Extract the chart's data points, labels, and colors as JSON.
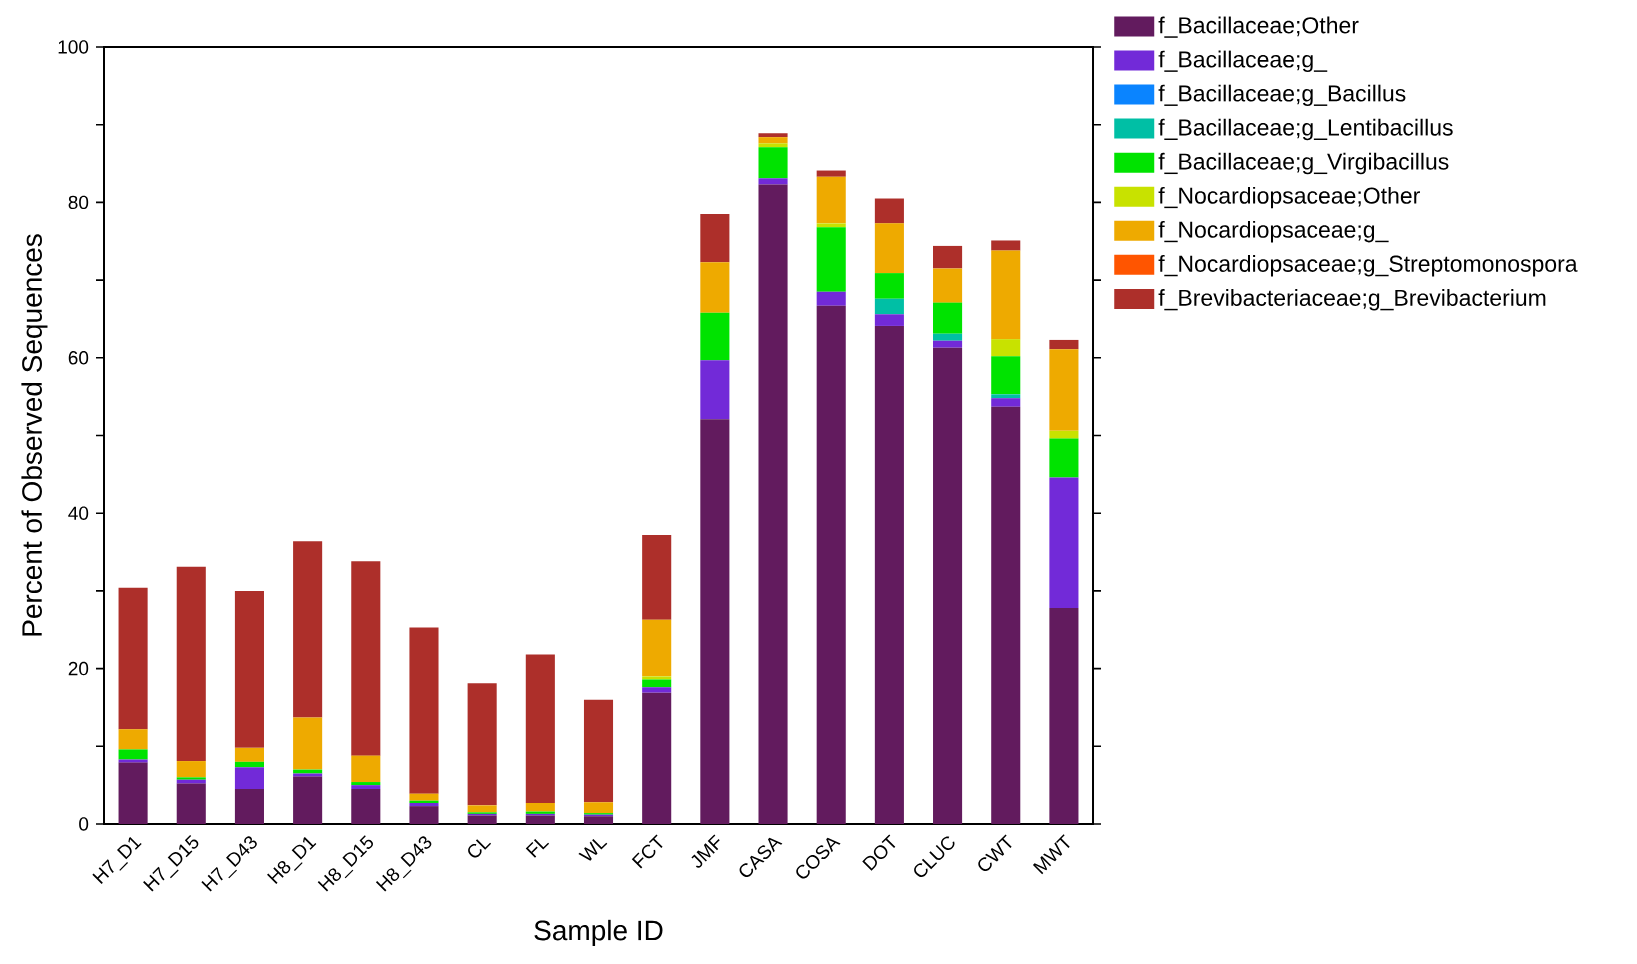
{
  "chart_data": {
    "type": "bar",
    "stacked": true,
    "xlabel": "Sample ID",
    "ylabel": "Percent  of Observed Sequences",
    "categories": [
      "H7_D1",
      "H7_D15",
      "H7_D43",
      "H8_D1",
      "H8_D15",
      "H8_D43",
      "CL",
      "FL",
      "WL",
      "FCT",
      "JMF",
      "CASA",
      "COSA",
      "DOT",
      "CLUC",
      "CWT",
      "MWT"
    ],
    "ylim": [
      0,
      100
    ],
    "yticks": [
      0,
      {
        "value": 10,
        "label": null
      },
      20,
      {
        "value": 30,
        "label": null
      },
      40,
      {
        "value": 50,
        "label": null
      },
      60,
      {
        "value": 70,
        "label": null
      },
      80,
      {
        "value": 90,
        "label": null
      },
      100
    ],
    "legend": "right",
    "grid": false,
    "series": [
      {
        "name": "f_Bacillaceae;Other",
        "color": "#621b5e",
        "values": [
          7.9,
          5.2,
          4.5,
          6.1,
          4.5,
          2.3,
          1.1,
          1.1,
          1.0,
          16.9,
          52.1,
          82.3,
          66.7,
          64.1,
          61.3,
          53.7,
          27.8
        ]
      },
      {
        "name": "f_Bacillaceae;g_",
        "color": "#722ad8",
        "values": [
          0.4,
          0.5,
          2.8,
          0.4,
          0.5,
          0.4,
          0.2,
          0.2,
          0.2,
          0.7,
          7.6,
          0.8,
          1.8,
          1.5,
          0.9,
          1.1,
          16.8
        ]
      },
      {
        "name": "f_Bacillaceae;g_Bacillus",
        "color": "#0a84ff",
        "values": [
          0,
          0,
          0,
          0,
          0,
          0,
          0,
          0,
          0,
          0,
          0,
          0,
          0,
          0,
          0,
          0,
          0
        ]
      },
      {
        "name": "f_Bacillaceae;g_Lentibacillus",
        "color": "#00bfa5",
        "values": [
          0,
          0,
          0,
          0,
          0,
          0,
          0,
          0,
          0,
          0,
          0,
          0,
          0,
          2.0,
          0.9,
          0.5,
          0
        ]
      },
      {
        "name": "f_Bacillaceae;g_Virgibacillus",
        "color": "#00e300",
        "values": [
          1.3,
          0.3,
          0.7,
          0.5,
          0.4,
          0.3,
          0.2,
          0.3,
          0.2,
          1.0,
          6.1,
          4.0,
          8.3,
          3.3,
          4.0,
          4.9,
          5.0
        ]
      },
      {
        "name": "f_Nocardiopsaceae;Other",
        "color": "#c8e200",
        "values": [
          0,
          0,
          0,
          0,
          0,
          0,
          0,
          0,
          0,
          0.4,
          0,
          0.5,
          0.5,
          0,
          0,
          2.2,
          1.0
        ]
      },
      {
        "name": "f_Nocardiopsaceae;g_",
        "color": "#eeaa00",
        "values": [
          2.6,
          2.1,
          1.8,
          6.7,
          3.4,
          0.9,
          0.9,
          1.1,
          1.4,
          7.3,
          6.5,
          0.8,
          6.0,
          6.4,
          4.4,
          11.4,
          10.5
        ]
      },
      {
        "name": "f_Nocardiopsaceae;g_Streptomonospora",
        "color": "#ff5500",
        "values": [
          0,
          0,
          0,
          0,
          0,
          0,
          0,
          0,
          0,
          0,
          0,
          0,
          0,
          0,
          0,
          0,
          0
        ]
      },
      {
        "name": "f_Brevibacteriaceae;g_Brevibacterium",
        "color": "#ad2f2a",
        "values": [
          18.2,
          25.0,
          20.2,
          22.7,
          25.0,
          21.4,
          15.7,
          19.1,
          13.2,
          10.9,
          6.2,
          0.5,
          0.8,
          3.2,
          2.9,
          1.3,
          1.2
        ]
      }
    ]
  }
}
